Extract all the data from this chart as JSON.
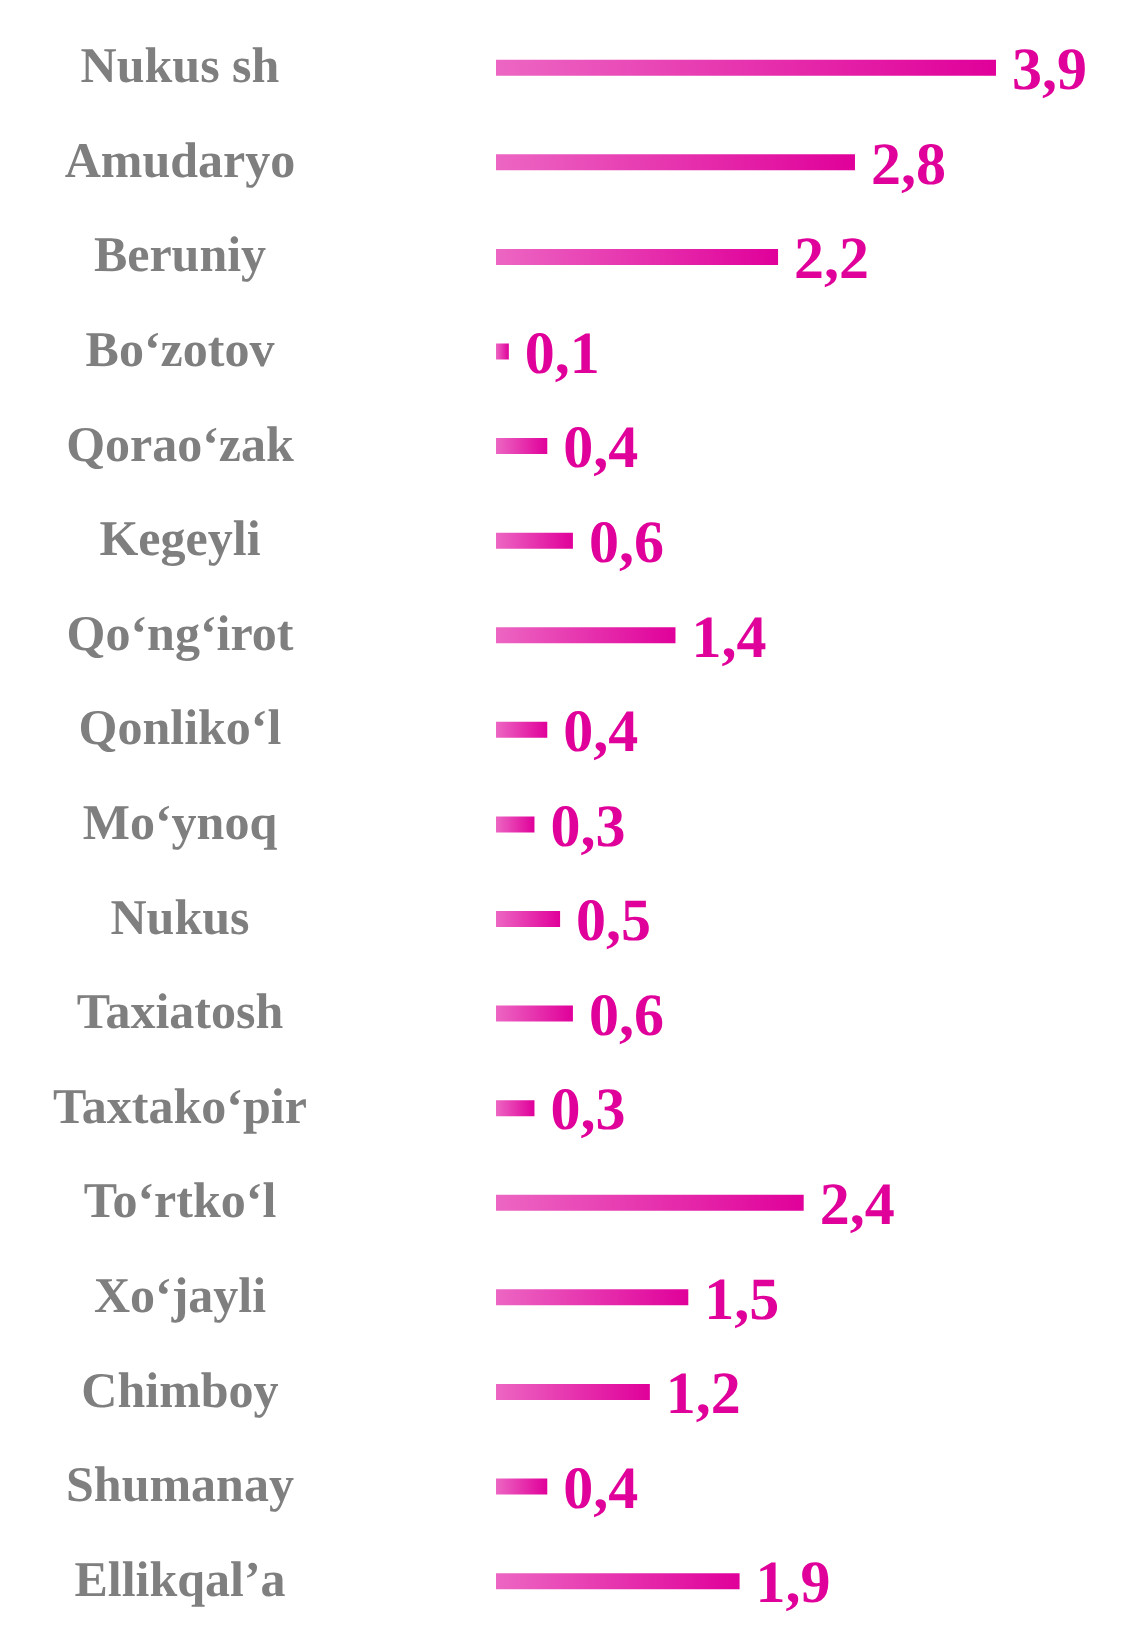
{
  "chart_data": {
    "type": "bar",
    "orientation": "horizontal",
    "categories": [
      "Nukus sh",
      "Amudaryo",
      "Beruniy",
      "Bo‘zotov",
      "Qorao‘zak",
      "Kegeyli",
      "Qo‘ng‘irot",
      "Qonliko‘l",
      "Mo‘ynoq",
      "Nukus",
      "Taxiatosh",
      "Taxtako‘pir",
      "To‘rtko‘l",
      "Xo‘jayli",
      "Chimboy",
      "Shumanay",
      "Ellikqal’a"
    ],
    "values": [
      3.9,
      2.8,
      2.2,
      0.1,
      0.4,
      0.6,
      1.4,
      0.4,
      0.3,
      0.5,
      0.6,
      0.3,
      2.4,
      1.5,
      1.2,
      0.4,
      1.9
    ],
    "value_labels": [
      "3,9",
      "2,8",
      "2,2",
      "0,1",
      "0,4",
      "0,6",
      "1,4",
      "0,4",
      "0,3",
      "0,5",
      "0,6",
      "0,3",
      "2,4",
      "1,5",
      "1,2",
      "0,4",
      "1,9"
    ],
    "color": "#e0009a"
  }
}
